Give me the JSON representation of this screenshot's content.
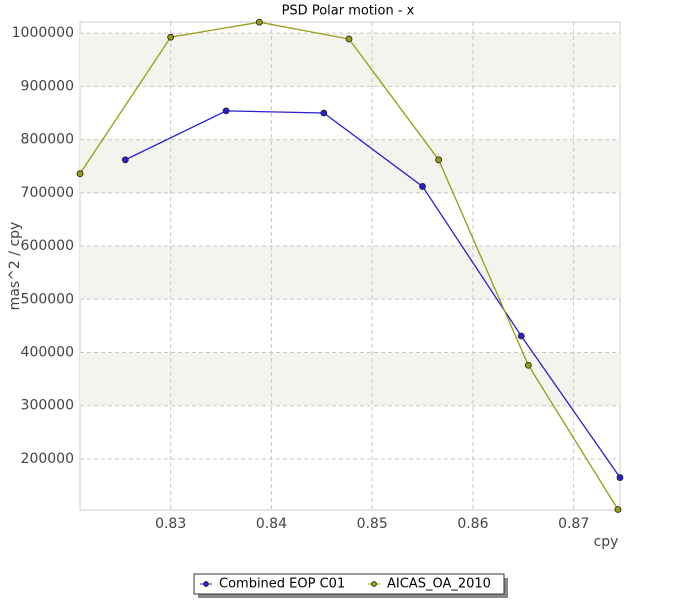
{
  "chart_data": {
    "type": "line",
    "title": "PSD Polar motion - x",
    "xlabel": "cpy",
    "ylabel": "mas^2 / cpy",
    "xlim": [
      0.821,
      0.8746
    ],
    "xticks": [
      0.83,
      0.84,
      0.85,
      0.86,
      0.87
    ],
    "ylim": [
      104000,
      1021000
    ],
    "yticks": [
      200000,
      300000,
      400000,
      500000,
      600000,
      700000,
      800000,
      900000,
      1000000
    ],
    "grid": true,
    "legend": "bottom",
    "series": [
      {
        "name": "Combined EOP C01",
        "color": "#2a1fd0",
        "x": [
          0.8255,
          0.8355,
          0.8452,
          0.855,
          0.8648,
          0.8746
        ],
        "values": [
          762000,
          854000,
          850000,
          712000,
          431000,
          165000
        ]
      },
      {
        "name": "AICAS_OA_2010",
        "color": "#9a9a14",
        "x": [
          0.821,
          0.83,
          0.8388,
          0.8477,
          0.8566,
          0.8655,
          0.8744
        ],
        "values": [
          736000,
          992500,
          1020600,
          989000,
          762000,
          376000,
          105000
        ]
      }
    ]
  }
}
